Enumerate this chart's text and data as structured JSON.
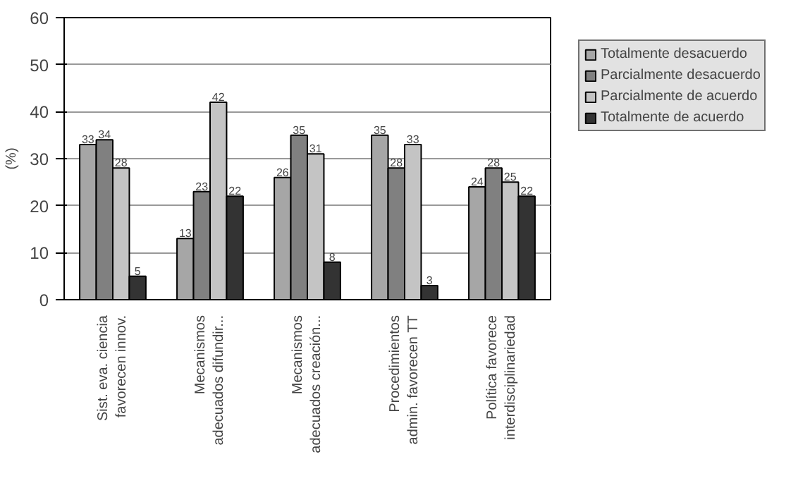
{
  "chart_data": {
    "type": "bar",
    "ylabel": "(%)",
    "categories": [
      "Sist. eva. ciencia\nfavorecen innov.",
      "Mecanismos\nadecuados difundir...",
      "Mecanismos\nadecuados creación...",
      "Procedimientos\nadmin. favorecen TT",
      "Política favorece\ninterdisciplinariedad"
    ],
    "series": [
      {
        "name": "Totalmente desacuerdo",
        "color": "#a6a6a6",
        "values": [
          33,
          13,
          26,
          35,
          24
        ]
      },
      {
        "name": "Parcialmente desacuerdo",
        "color": "#808080",
        "values": [
          34,
          23,
          35,
          28,
          28
        ]
      },
      {
        "name": "Parcialmente de acuerdo",
        "color": "#c4c4c4",
        "values": [
          28,
          42,
          31,
          33,
          25
        ]
      },
      {
        "name": "Totalmente de acuerdo",
        "color": "#333333",
        "values": [
          5,
          22,
          8,
          3,
          22
        ]
      }
    ],
    "ylim": [
      0,
      60
    ],
    "yticks": [
      0,
      10,
      20,
      30,
      40,
      50,
      60
    ],
    "grid": "y",
    "legend": "right",
    "data_labels": true
  }
}
